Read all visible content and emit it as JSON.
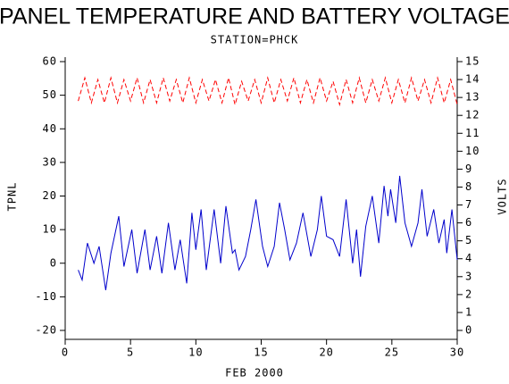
{
  "chart_data": {
    "type": "line",
    "title": "PANEL TEMPERATURE AND BATTERY VOLTAGE",
    "subtitle": "STATION=PHCK",
    "x_label": "FEB 2000",
    "y_label": "TPNL",
    "y2_label": "VOLTS",
    "xlim": [
      0,
      30
    ],
    "xticks": [
      0,
      5,
      10,
      15,
      20,
      25,
      30
    ],
    "ylim": [
      -20,
      60
    ],
    "yticks": [
      -20,
      -10,
      0,
      10,
      20,
      30,
      40,
      50,
      60
    ],
    "y2lim": [
      0,
      15
    ],
    "y2ticks": [
      0,
      1,
      2,
      3,
      4,
      5,
      6,
      7,
      8,
      9,
      10,
      11,
      12,
      13,
      14,
      15
    ],
    "series": [
      {
        "color": "#0000cc",
        "axis": "y",
        "x": [
          1,
          1.3,
          1.7,
          2.2,
          2.6,
          3.1,
          3.5,
          4.1,
          4.5,
          5.1,
          5.5,
          6.1,
          6.5,
          7,
          7.4,
          7.9,
          8.4,
          8.8,
          9.3,
          9.7,
          10,
          10.4,
          10.8,
          11.4,
          11.9,
          12.3,
          12.8,
          13,
          13.3,
          13.8,
          14.2,
          14.6,
          15.1,
          15.5,
          16,
          16.4,
          16.8,
          17.2,
          17.7,
          18.2,
          18.8,
          19.3,
          19.6,
          20,
          20.5,
          21,
          21.5,
          22,
          22.3,
          22.6,
          23,
          23.5,
          24,
          24.4,
          24.7,
          24.9,
          25.3,
          25.6,
          26,
          26.5,
          27,
          27.3,
          27.7,
          28.2,
          28.6,
          29,
          29.2,
          29.6,
          30
        ],
        "values": [
          -2,
          -5,
          6,
          0,
          5,
          -8,
          3,
          14,
          -1,
          10,
          -3,
          10,
          -2,
          8,
          -3,
          12,
          -2,
          7,
          -6,
          15,
          4,
          16,
          -2,
          16,
          0,
          17,
          3,
          4,
          -2,
          2,
          10,
          19,
          5,
          -1,
          5,
          18,
          10,
          1,
          6,
          15,
          2,
          10,
          20,
          8,
          7,
          2,
          19,
          0,
          10,
          -4,
          11,
          20,
          6,
          23,
          14,
          22,
          12,
          26,
          12,
          5,
          12,
          22,
          8,
          16,
          6,
          13,
          3,
          16,
          1
        ]
      },
      {
        "color": "#ff0000",
        "axis": "y2",
        "dashed": true,
        "x": [
          1,
          1.5,
          2,
          2.5,
          3,
          3.5,
          4,
          4.5,
          5,
          5.5,
          6,
          6.5,
          7,
          7.5,
          8,
          8.5,
          9,
          9.5,
          10,
          10.5,
          11,
          11.5,
          12,
          12.5,
          13,
          13.5,
          14,
          14.5,
          15,
          15.5,
          16,
          16.5,
          17,
          17.5,
          18,
          18.5,
          19,
          19.5,
          20,
          20.5,
          21,
          21.5,
          22,
          22.5,
          23,
          23.5,
          24,
          24.5,
          25,
          25.5,
          26,
          26.5,
          27,
          27.5,
          28,
          28.5,
          29,
          29.5,
          30
        ],
        "values": [
          12.8,
          14.1,
          12.7,
          14.0,
          12.7,
          14.1,
          12.7,
          14.0,
          12.8,
          14.1,
          12.7,
          14.0,
          12.7,
          14.1,
          12.8,
          14.0,
          12.7,
          14.1,
          12.7,
          14.0,
          12.8,
          14.0,
          12.7,
          14.1,
          12.6,
          13.9,
          12.8,
          14.0,
          12.7,
          14.1,
          12.7,
          14.0,
          12.8,
          14.1,
          12.7,
          14.0,
          12.7,
          14.1,
          12.8,
          13.9,
          12.6,
          14.0,
          12.7,
          14.1,
          12.7,
          14.0,
          12.8,
          14.1,
          12.7,
          14.0,
          12.7,
          14.1,
          12.8,
          14.0,
          12.7,
          14.1,
          12.7,
          14.0,
          12.6
        ]
      }
    ]
  }
}
